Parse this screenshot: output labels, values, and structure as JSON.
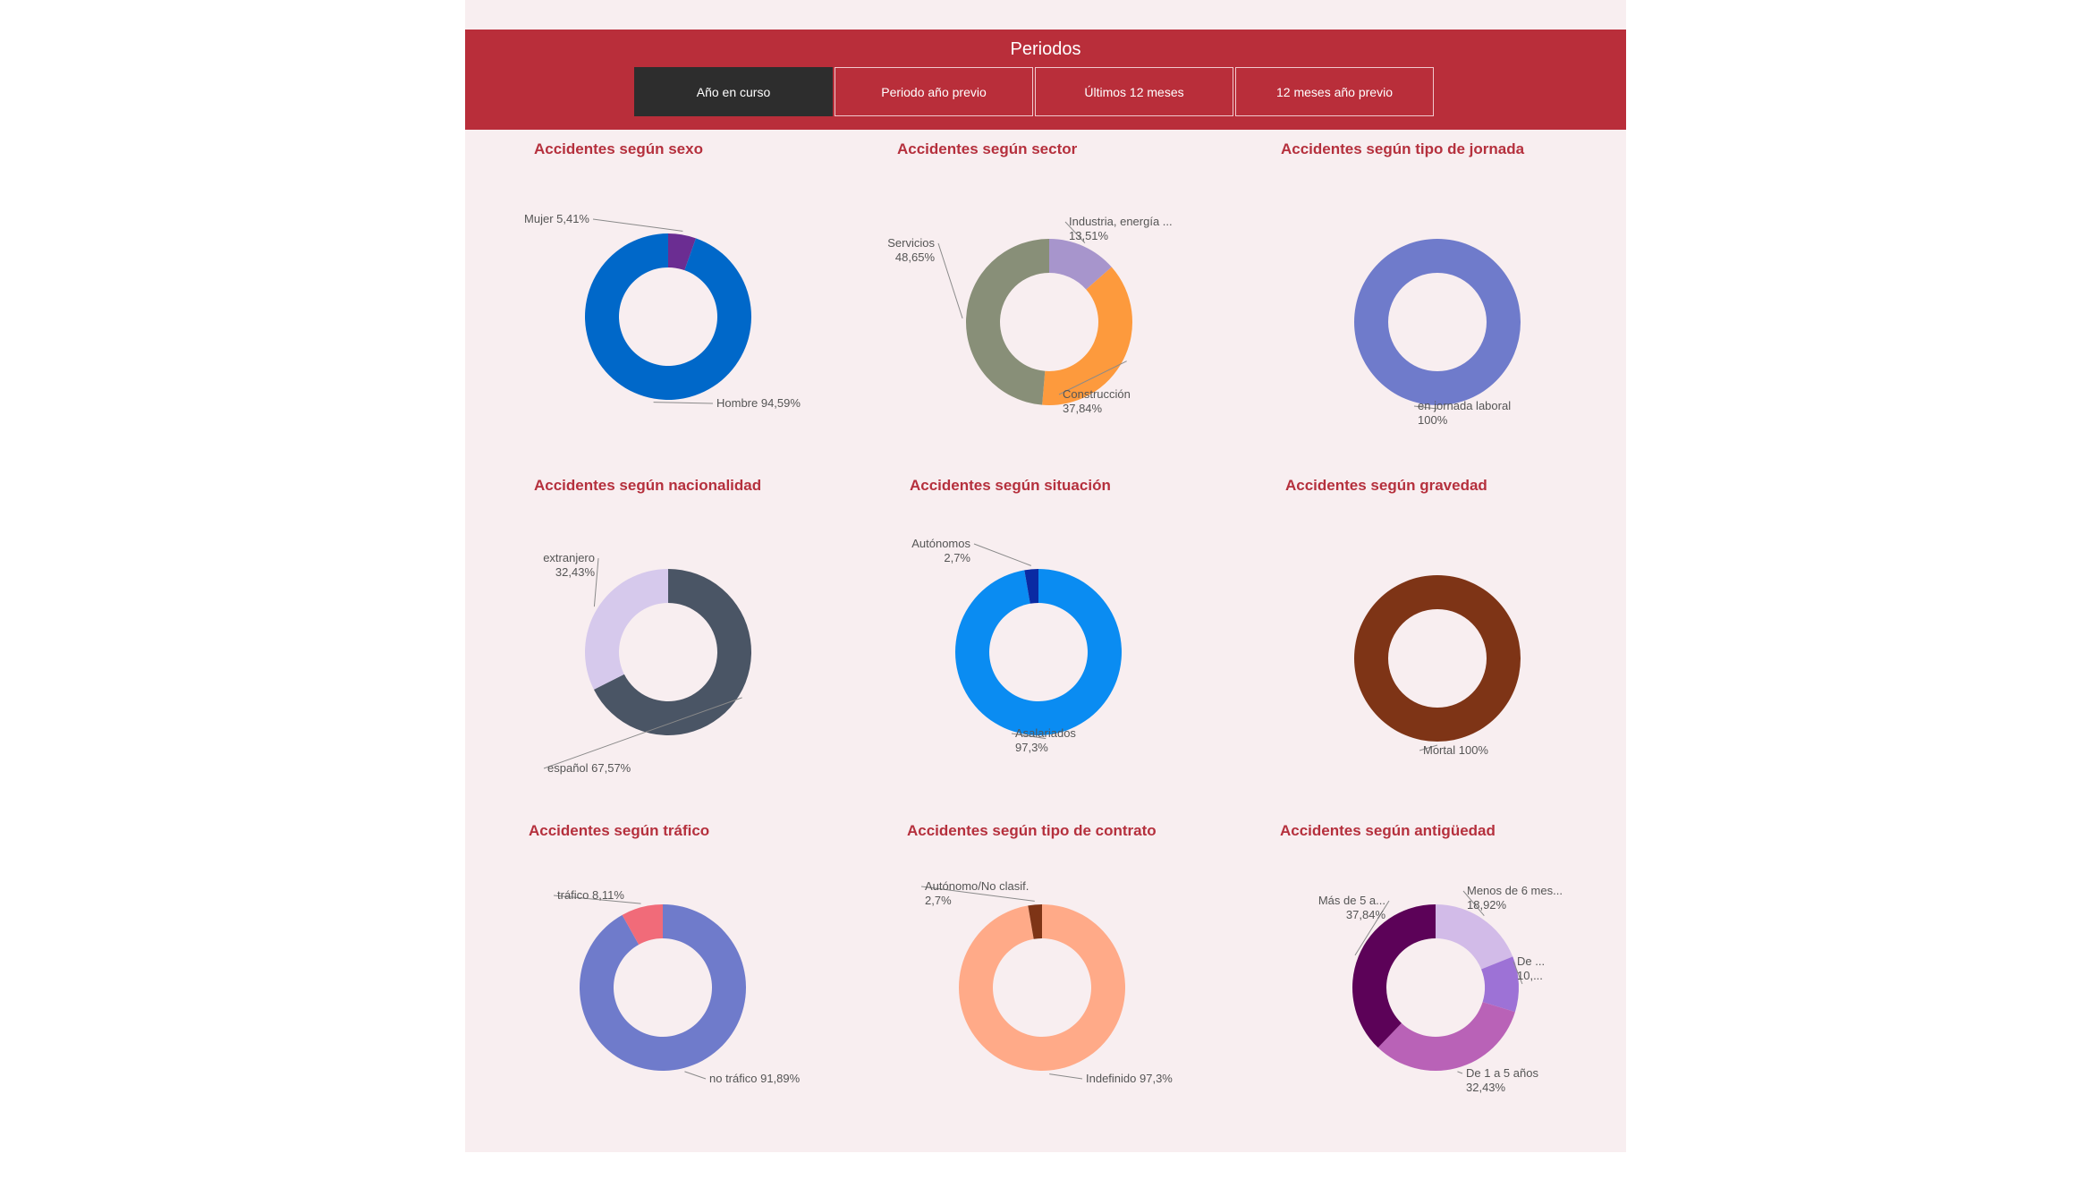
{
  "periods": {
    "title": "Periodos",
    "tabs": [
      "Año en curso",
      "Periodo año previo",
      "Últimos 12 meses",
      "12 meses año previo"
    ],
    "active_index": 0
  },
  "colors": {
    "header": "#b92e3a",
    "title": "#b5303d",
    "background": "#f8eef0"
  },
  "chart_data": [
    {
      "type": "pie",
      "title": "Accidentes según sexo",
      "slices": [
        {
          "name": "Mujer",
          "value": 5.41,
          "color": "#6b2d92",
          "label": "Mujer 5,41%"
        },
        {
          "name": "Hombre",
          "value": 94.59,
          "color": "#0068c9",
          "label": "Hombre 94,59%"
        }
      ]
    },
    {
      "type": "pie",
      "title": "Accidentes según sector",
      "slices": [
        {
          "name": "Industria, energía ...",
          "value": 13.51,
          "color": "#a795cc",
          "label": "Industria, energía ...|13,51%"
        },
        {
          "name": "Construcción",
          "value": 37.84,
          "color": "#fd9a3d",
          "label": "Construcción|37,84%"
        },
        {
          "name": "Servicios",
          "value": 48.65,
          "color": "#888f78",
          "label": "Servicios|48,65%"
        }
      ]
    },
    {
      "type": "pie",
      "title": "Accidentes según tipo de jornada",
      "slices": [
        {
          "name": "en jornada laboral",
          "value": 100,
          "color": "#6f7bcb",
          "label": "en jornada laboral|100%"
        }
      ]
    },
    {
      "type": "pie",
      "title": "Accidentes según nacionalidad",
      "slices": [
        {
          "name": "español",
          "value": 67.57,
          "color": "#4a5565",
          "label": "español 67,57%"
        },
        {
          "name": "extranjero",
          "value": 32.43,
          "color": "#d6c9ec",
          "label": "extranjero|32,43%"
        }
      ]
    },
    {
      "type": "pie",
      "title": "Accidentes según situación",
      "slices": [
        {
          "name": "Asalariados",
          "value": 97.3,
          "color": "#0a8cf2",
          "label": "Asalariados|97,3%"
        },
        {
          "name": "Autónomos",
          "value": 2.7,
          "color": "#0a2aa3",
          "label": "Autónomos|2,7%"
        }
      ]
    },
    {
      "type": "pie",
      "title": "Accidentes según gravedad",
      "slices": [
        {
          "name": "Mortal",
          "value": 100,
          "color": "#7e3416",
          "label": "Mortal 100%"
        }
      ]
    },
    {
      "type": "pie",
      "title": "Accidentes según tráfico",
      "slices": [
        {
          "name": "no tráfico",
          "value": 91.89,
          "color": "#6f7bcb",
          "label": "no tráfico 91,89%"
        },
        {
          "name": "tráfico",
          "value": 8.11,
          "color": "#f16b79",
          "label": "tráfico 8,11%"
        }
      ]
    },
    {
      "type": "pie",
      "title": "Accidentes según tipo de contrato",
      "slices": [
        {
          "name": "Indefinido",
          "value": 97.3,
          "color": "#ffaa88",
          "label": "Indefinido 97,3%"
        },
        {
          "name": "Autónomo/No clasif.",
          "value": 2.7,
          "color": "#7e3416",
          "label": "Autónomo/No clasif.|2,7%"
        }
      ]
    },
    {
      "type": "pie",
      "title": "Accidentes según antigüedad",
      "slices": [
        {
          "name": "Menos de 6 mes...",
          "value": 18.92,
          "color": "#d2bbe8",
          "label": "Menos de 6 mes...|18,92%"
        },
        {
          "name": "De ...",
          "value": 10.81,
          "color": "#9d72d6",
          "label": "De ...|10,..."
        },
        {
          "name": "De 1 a 5 años",
          "value": 32.43,
          "color": "#b962b7",
          "label": "De 1 a 5 años|32,43%"
        },
        {
          "name": "Más de 5 a...",
          "value": 37.84,
          "color": "#5c0258",
          "label": "Más de 5 a...|37,84%"
        }
      ]
    }
  ]
}
